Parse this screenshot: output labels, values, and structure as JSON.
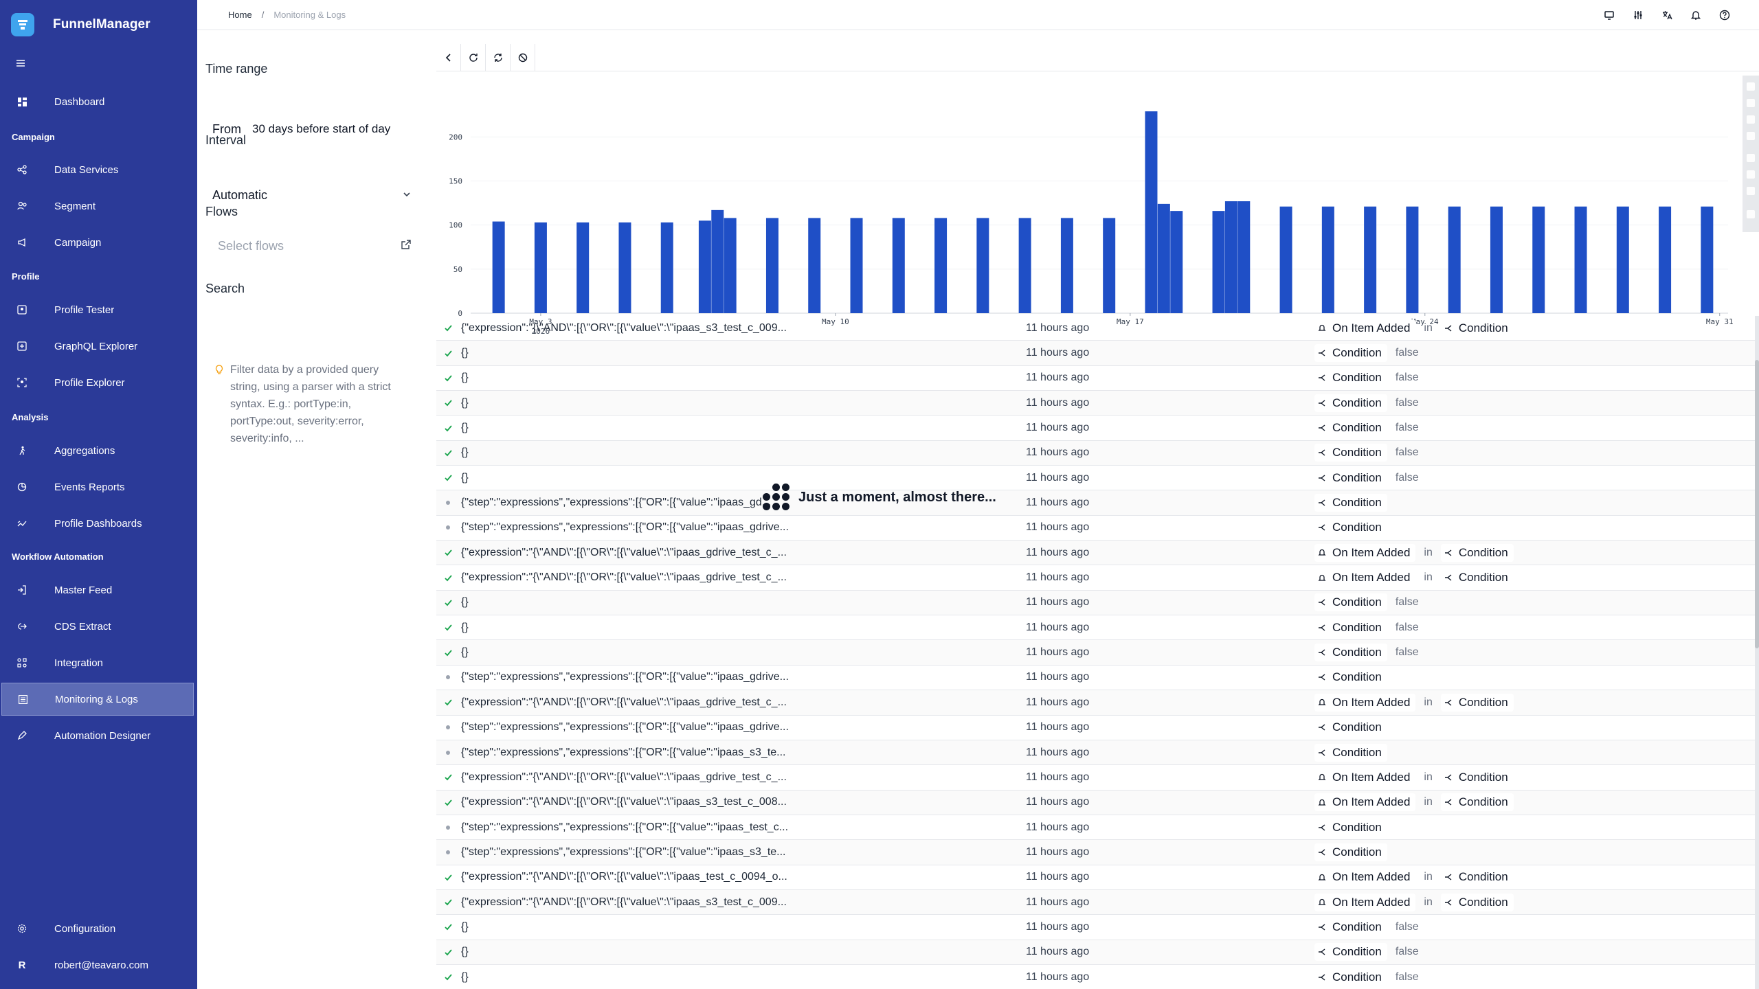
{
  "app": {
    "name": "FunnelManager"
  },
  "breadcrumb": {
    "home": "Home",
    "separator": "/",
    "current": "Monitoring & Logs"
  },
  "sidebar": {
    "dashboard": "Dashboard",
    "sections": {
      "campaign": "Campaign",
      "profile": "Profile",
      "analysis": "Analysis",
      "workflow": "Workflow Automation"
    },
    "campaign_items": [
      "Data Services",
      "Segment",
      "Campaign"
    ],
    "profile_items": [
      "Profile Tester",
      "GraphQL Explorer",
      "Profile Explorer"
    ],
    "analysis_items": [
      "Aggregations",
      "Events Reports",
      "Profile Dashboards"
    ],
    "workflow_items": [
      "Master Feed",
      "CDS Extract",
      "Integration",
      "Monitoring & Logs",
      "Automation Designer"
    ],
    "configuration": "Configuration",
    "user_initial": "R",
    "user_email": "robert@teavaro.com"
  },
  "filters": {
    "time_range_label": "Time range",
    "from_label": "From",
    "from_value": "30 days before start of day",
    "interval_label": "Interval",
    "interval_value": "Automatic",
    "flows_label": "Flows",
    "flows_placeholder": "Select flows",
    "search_label": "Search",
    "hint": "Filter data by a provided query string, using a parser with a strict syntax. E.g.: portType:in, portType:out, severity:error, severity:info, ..."
  },
  "loading_text": "Just a moment, almost there...",
  "colors": {
    "sidebar": "#2b3a98",
    "bar": "#1f4fc6",
    "success": "#16a34a"
  },
  "chart_data": {
    "type": "bar",
    "yticks": [
      0,
      50,
      100,
      150,
      200
    ],
    "ylim": [
      0,
      240
    ],
    "xticks": [
      {
        "label": "May 3",
        "sub": "2026",
        "x": 4
      },
      {
        "label": "May 10",
        "x": 11
      },
      {
        "label": "May 17",
        "x": 18
      },
      {
        "label": "May 24",
        "x": 25
      },
      {
        "label": "May 31",
        "x": 32
      }
    ],
    "bars": [
      {
        "x": 3,
        "y": 104
      },
      {
        "x": 4,
        "y": 103
      },
      {
        "x": 5,
        "y": 103
      },
      {
        "x": 6,
        "y": 103
      },
      {
        "x": 7,
        "y": 103
      },
      {
        "x": 7.9,
        "y": 105
      },
      {
        "x": 8.2,
        "y": 117
      },
      {
        "x": 8.5,
        "y": 108
      },
      {
        "x": 9.5,
        "y": 108
      },
      {
        "x": 10.5,
        "y": 108
      },
      {
        "x": 11.5,
        "y": 108
      },
      {
        "x": 12.5,
        "y": 108
      },
      {
        "x": 13.5,
        "y": 108
      },
      {
        "x": 14.5,
        "y": 108
      },
      {
        "x": 15.5,
        "y": 108
      },
      {
        "x": 16.5,
        "y": 108
      },
      {
        "x": 17.5,
        "y": 108
      },
      {
        "x": 18.5,
        "y": 229
      },
      {
        "x": 18.8,
        "y": 124
      },
      {
        "x": 19.1,
        "y": 116
      },
      {
        "x": 20.1,
        "y": 116
      },
      {
        "x": 20.4,
        "y": 127
      },
      {
        "x": 20.7,
        "y": 127
      },
      {
        "x": 21.7,
        "y": 121
      },
      {
        "x": 22.7,
        "y": 121
      },
      {
        "x": 23.7,
        "y": 121
      },
      {
        "x": 24.7,
        "y": 121
      },
      {
        "x": 25.7,
        "y": 121
      },
      {
        "x": 26.7,
        "y": 121
      },
      {
        "x": 27.7,
        "y": 121
      },
      {
        "x": 28.7,
        "y": 121
      },
      {
        "x": 29.7,
        "y": 121
      },
      {
        "x": 30.7,
        "y": 121
      },
      {
        "x": 31.7,
        "y": 121
      }
    ]
  },
  "log_rows": [
    {
      "status": "ok",
      "expr": "{\"expression\":\"{\\\"AND\\\":[{\\\"OR\\\":[{\\\"value\\\":\\\"ipaas_s3_test_c_009...",
      "time": "11 hours ago",
      "trigger": "On Item Added",
      "in": "in",
      "node": "Condition",
      "result": ""
    },
    {
      "status": "ok",
      "expr": "{}",
      "time": "11 hours ago",
      "trigger": "",
      "in": "",
      "node": "Condition",
      "result": "false"
    },
    {
      "status": "ok",
      "expr": "{}",
      "time": "11 hours ago",
      "trigger": "",
      "in": "",
      "node": "Condition",
      "result": "false"
    },
    {
      "status": "ok",
      "expr": "{}",
      "time": "11 hours ago",
      "trigger": "",
      "in": "",
      "node": "Condition",
      "result": "false"
    },
    {
      "status": "ok",
      "expr": "{}",
      "time": "11 hours ago",
      "trigger": "",
      "in": "",
      "node": "Condition",
      "result": "false"
    },
    {
      "status": "ok",
      "expr": "{}",
      "time": "11 hours ago",
      "trigger": "",
      "in": "",
      "node": "Condition",
      "result": "false"
    },
    {
      "status": "ok",
      "expr": "{}",
      "time": "11 hours ago",
      "trigger": "",
      "in": "",
      "node": "Condition",
      "result": "false"
    },
    {
      "status": "dot",
      "expr": "{\"step\":\"expressions\",\"expressions\":[{\"OR\":[{\"value\":\"ipaas_gd...",
      "time": "11 hours ago",
      "trigger": "",
      "in": "",
      "node": "Condition",
      "result": ""
    },
    {
      "status": "dot",
      "expr": "{\"step\":\"expressions\",\"expressions\":[{\"OR\":[{\"value\":\"ipaas_gdrive...",
      "time": "11 hours ago",
      "trigger": "",
      "in": "",
      "node": "Condition",
      "result": ""
    },
    {
      "status": "ok",
      "expr": "{\"expression\":\"{\\\"AND\\\":[{\\\"OR\\\":[{\\\"value\\\":\\\"ipaas_gdrive_test_c_...",
      "time": "11 hours ago",
      "trigger": "On Item Added",
      "in": "in",
      "node": "Condition",
      "result": ""
    },
    {
      "status": "ok",
      "expr": "{\"expression\":\"{\\\"AND\\\":[{\\\"OR\\\":[{\\\"value\\\":\\\"ipaas_gdrive_test_c_...",
      "time": "11 hours ago",
      "trigger": "On Item Added",
      "in": "in",
      "node": "Condition",
      "result": ""
    },
    {
      "status": "ok",
      "expr": "{}",
      "time": "11 hours ago",
      "trigger": "",
      "in": "",
      "node": "Condition",
      "result": "false"
    },
    {
      "status": "ok",
      "expr": "{}",
      "time": "11 hours ago",
      "trigger": "",
      "in": "",
      "node": "Condition",
      "result": "false"
    },
    {
      "status": "ok",
      "expr": "{}",
      "time": "11 hours ago",
      "trigger": "",
      "in": "",
      "node": "Condition",
      "result": "false"
    },
    {
      "status": "dot",
      "expr": "{\"step\":\"expressions\",\"expressions\":[{\"OR\":[{\"value\":\"ipaas_gdrive...",
      "time": "11 hours ago",
      "trigger": "",
      "in": "",
      "node": "Condition",
      "result": ""
    },
    {
      "status": "ok",
      "expr": "{\"expression\":\"{\\\"AND\\\":[{\\\"OR\\\":[{\\\"value\\\":\\\"ipaas_gdrive_test_c_...",
      "time": "11 hours ago",
      "trigger": "On Item Added",
      "in": "in",
      "node": "Condition",
      "result": ""
    },
    {
      "status": "dot",
      "expr": "{\"step\":\"expressions\",\"expressions\":[{\"OR\":[{\"value\":\"ipaas_gdrive...",
      "time": "11 hours ago",
      "trigger": "",
      "in": "",
      "node": "Condition",
      "result": ""
    },
    {
      "status": "dot",
      "expr": "{\"step\":\"expressions\",\"expressions\":[{\"OR\":[{\"value\":\"ipaas_s3_te...",
      "time": "11 hours ago",
      "trigger": "",
      "in": "",
      "node": "Condition",
      "result": ""
    },
    {
      "status": "ok",
      "expr": "{\"expression\":\"{\\\"AND\\\":[{\\\"OR\\\":[{\\\"value\\\":\\\"ipaas_gdrive_test_c_...",
      "time": "11 hours ago",
      "trigger": "On Item Added",
      "in": "in",
      "node": "Condition",
      "result": ""
    },
    {
      "status": "ok",
      "expr": "{\"expression\":\"{\\\"AND\\\":[{\\\"OR\\\":[{\\\"value\\\":\\\"ipaas_s3_test_c_008...",
      "time": "11 hours ago",
      "trigger": "On Item Added",
      "in": "in",
      "node": "Condition",
      "result": ""
    },
    {
      "status": "dot",
      "expr": "{\"step\":\"expressions\",\"expressions\":[{\"OR\":[{\"value\":\"ipaas_test_c...",
      "time": "11 hours ago",
      "trigger": "",
      "in": "",
      "node": "Condition",
      "result": ""
    },
    {
      "status": "dot",
      "expr": "{\"step\":\"expressions\",\"expressions\":[{\"OR\":[{\"value\":\"ipaas_s3_te...",
      "time": "11 hours ago",
      "trigger": "",
      "in": "",
      "node": "Condition",
      "result": ""
    },
    {
      "status": "ok",
      "expr": "{\"expression\":\"{\\\"AND\\\":[{\\\"OR\\\":[{\\\"value\\\":\\\"ipaas_test_c_0094_o...",
      "time": "11 hours ago",
      "trigger": "On Item Added",
      "in": "in",
      "node": "Condition",
      "result": ""
    },
    {
      "status": "ok",
      "expr": "{\"expression\":\"{\\\"AND\\\":[{\\\"OR\\\":[{\\\"value\\\":\\\"ipaas_s3_test_c_009...",
      "time": "11 hours ago",
      "trigger": "On Item Added",
      "in": "in",
      "node": "Condition",
      "result": ""
    },
    {
      "status": "ok",
      "expr": "{}",
      "time": "11 hours ago",
      "trigger": "",
      "in": "",
      "node": "Condition",
      "result": "false"
    },
    {
      "status": "ok",
      "expr": "{}",
      "time": "11 hours ago",
      "trigger": "",
      "in": "",
      "node": "Condition",
      "result": "false"
    },
    {
      "status": "ok",
      "expr": "{}",
      "time": "11 hours ago",
      "trigger": "",
      "in": "",
      "node": "Condition",
      "result": "false"
    }
  ]
}
